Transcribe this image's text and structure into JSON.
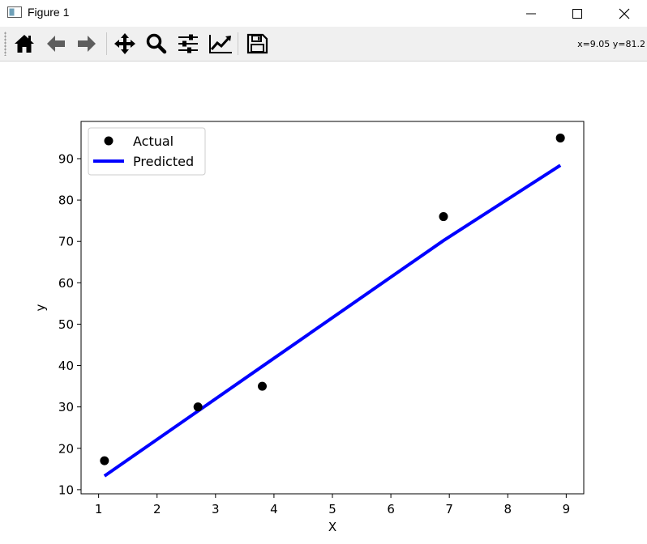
{
  "window": {
    "title": "Figure 1",
    "icons": [
      "figure-app-icon",
      "minimize-icon",
      "maximize-icon",
      "close-icon"
    ]
  },
  "toolbar": {
    "buttons": [
      "home-icon",
      "back-arrow-icon",
      "forward-arrow-icon",
      "pan-icon",
      "zoom-icon",
      "configure-subplots-icon",
      "edit-axis-icon",
      "save-icon"
    ],
    "coords": "x=9.05 y=81.2"
  },
  "chart_data": {
    "type": "scatter",
    "title": "",
    "xlabel": "X",
    "ylabel": "y",
    "xlim": [
      0.7,
      9.3
    ],
    "ylim": [
      9.0,
      99.0
    ],
    "xticks": [
      1,
      2,
      3,
      4,
      5,
      6,
      7,
      8,
      9
    ],
    "yticks": [
      10,
      20,
      30,
      40,
      50,
      60,
      70,
      80,
      90
    ],
    "legend_position": "upper-left",
    "grid": false,
    "series": [
      {
        "name": "Actual",
        "kind": "scatter",
        "color": "#000000",
        "x": [
          1.1,
          2.7,
          3.8,
          6.9,
          8.9
        ],
        "y": [
          17,
          30,
          35,
          76,
          95
        ]
      },
      {
        "name": "Predicted",
        "kind": "line",
        "color": "#0000ff",
        "x": [
          1.1,
          2.7,
          3.8,
          6.9,
          8.9
        ],
        "y": [
          13.3,
          29.0,
          39.8,
          70.2,
          88.4
        ]
      }
    ]
  }
}
